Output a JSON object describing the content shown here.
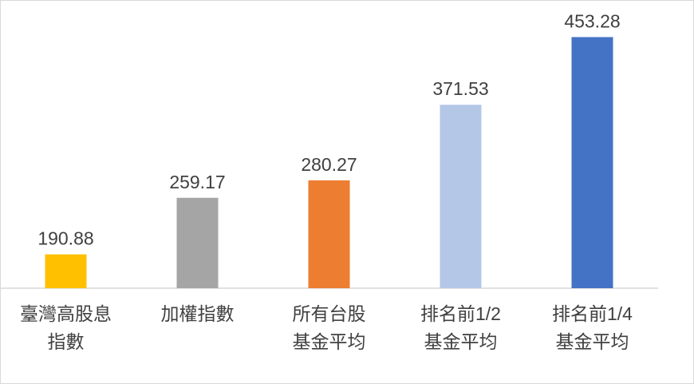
{
  "chart_data": {
    "type": "bar",
    "categories": [
      [
        "臺灣高股息",
        "指數"
      ],
      [
        "加權指數"
      ],
      [
        "所有台股",
        "基金平均"
      ],
      [
        "排名前1/2",
        "基金平均"
      ],
      [
        "排名前1/4",
        "基金平均"
      ]
    ],
    "values": [
      190.88,
      259.17,
      280.27,
      371.53,
      453.28
    ],
    "colors": [
      "#ffc000",
      "#a5a5a5",
      "#ed7d31",
      "#b4c7e7",
      "#4472c4"
    ],
    "ylim": [
      150,
      500
    ]
  }
}
